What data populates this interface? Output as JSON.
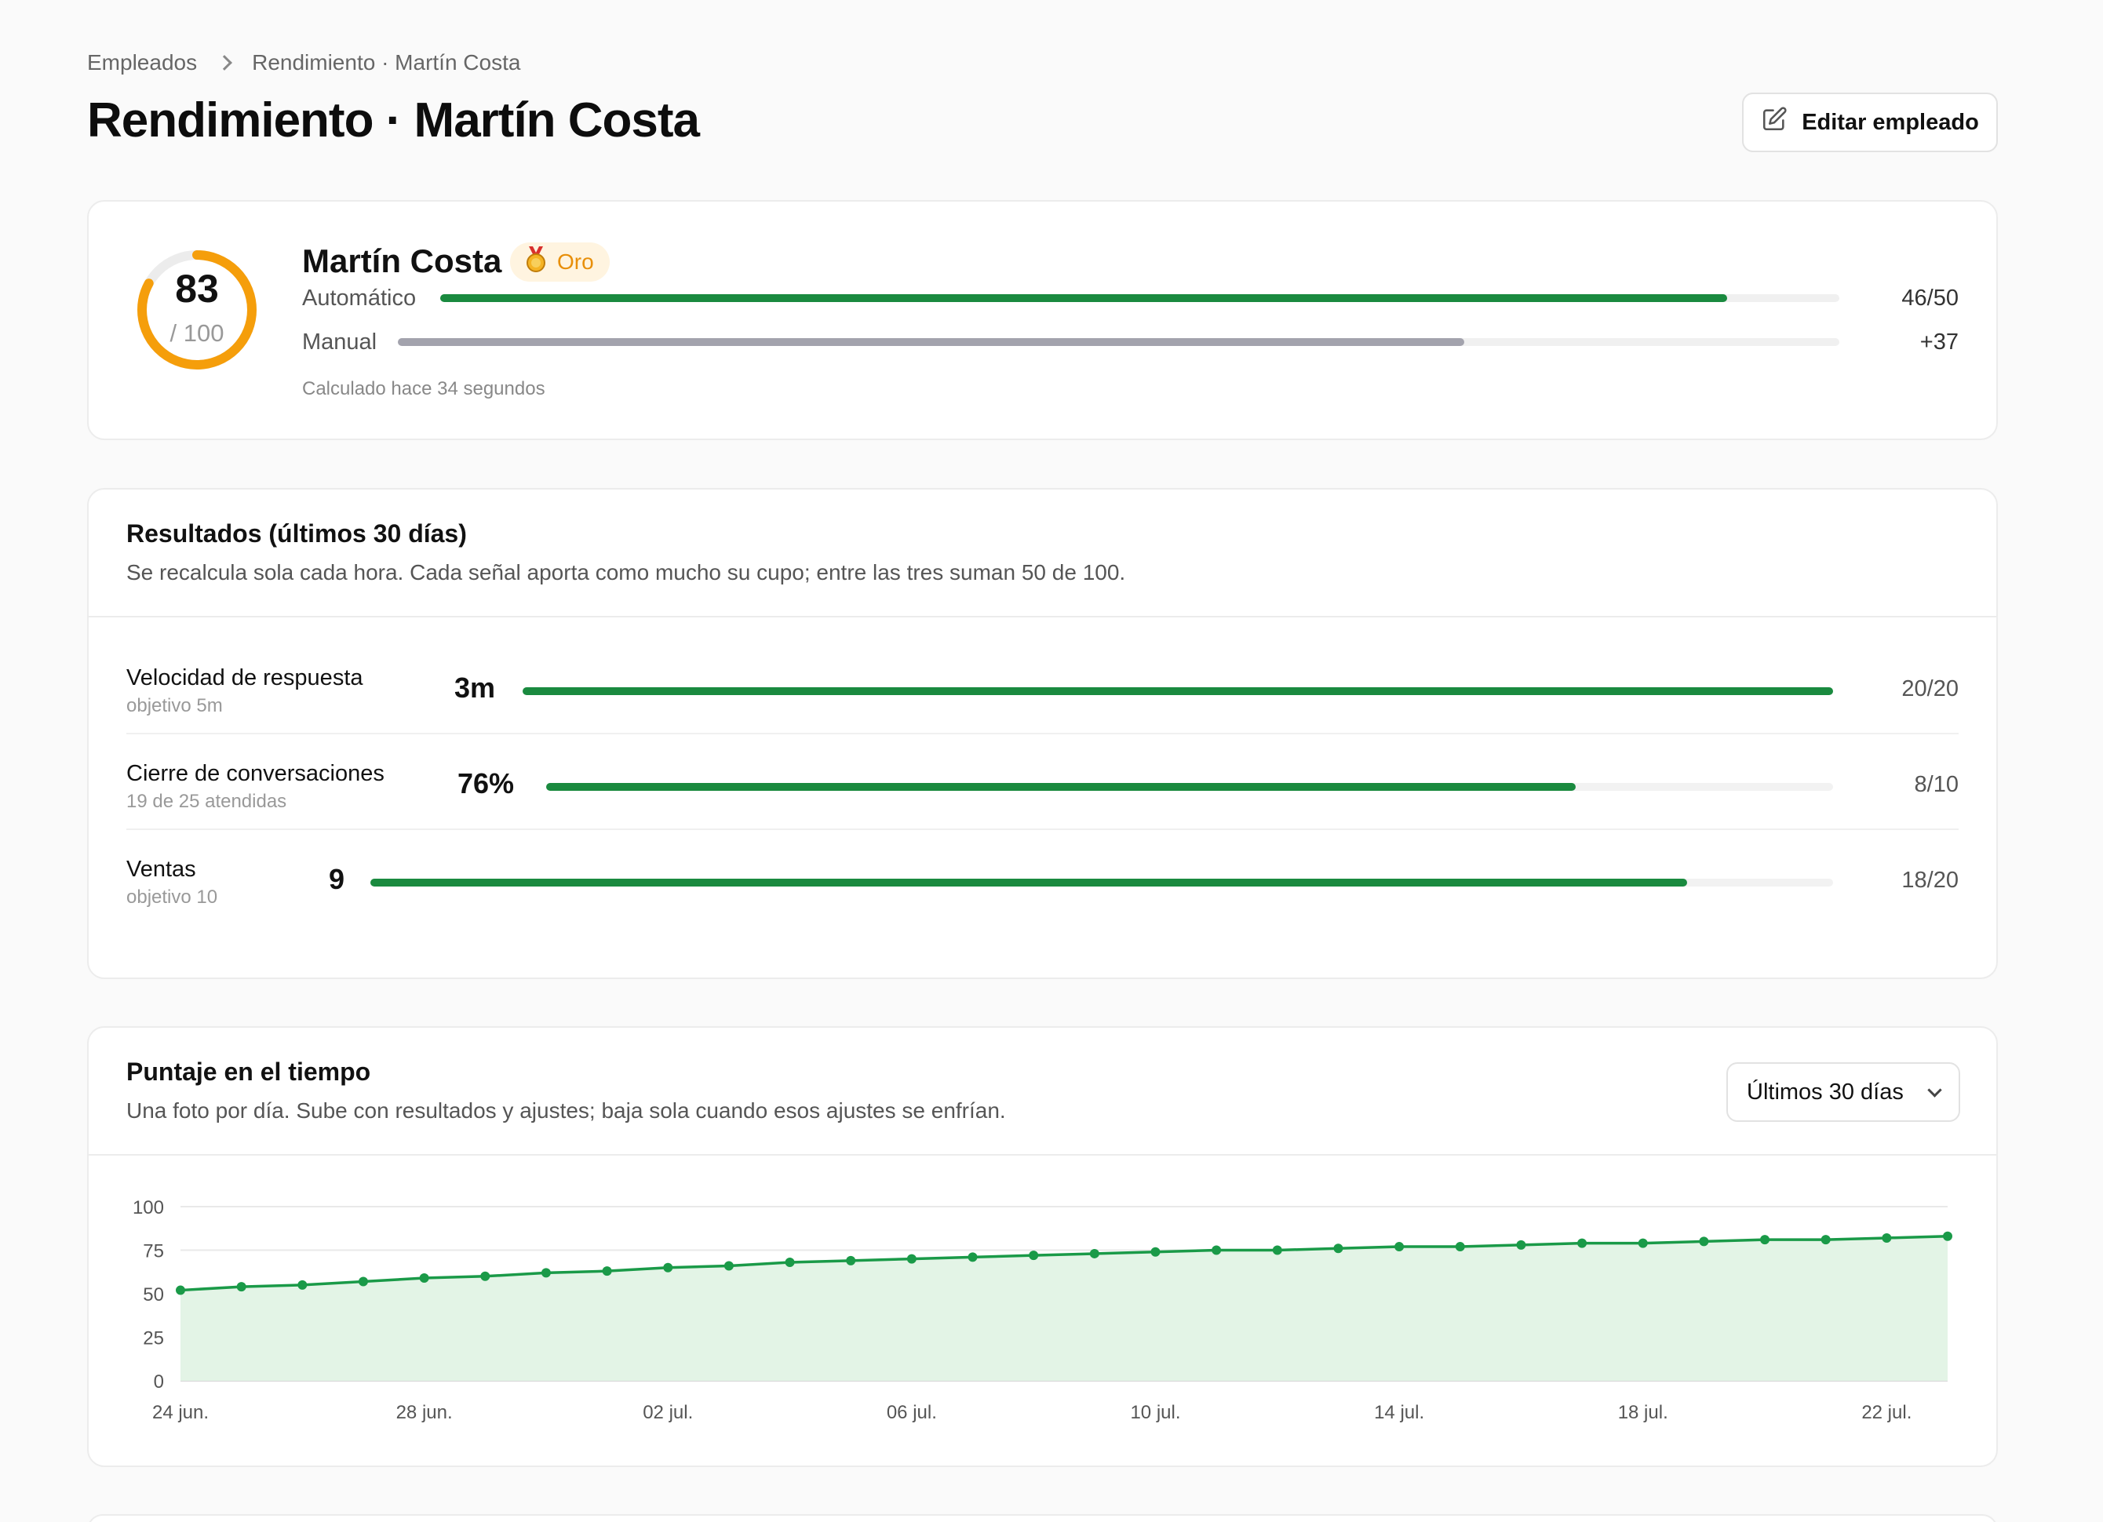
{
  "breadcrumb": {
    "parent": "Empleados",
    "current": "Rendimiento · Martín Costa"
  },
  "page": {
    "title": "Rendimiento · Martín Costa",
    "edit_label": "Editar empleado"
  },
  "score_card": {
    "score": "83",
    "max_label": "/ 100",
    "score_fraction": 0.83,
    "name": "Martín Costa",
    "tier": "Oro",
    "rows": [
      {
        "label": "Automático",
        "value": "46/50",
        "fraction": 0.92,
        "color": "#1a8a3f"
      },
      {
        "label": "Manual",
        "value": "+37",
        "fraction": 0.74,
        "color": "#a3a3ad"
      }
    ],
    "calc_note": "Calculado hace 34 segundos",
    "ring_color": "#f59e0b"
  },
  "results": {
    "title": "Resultados (últimos 30 días)",
    "subtitle": "Se recalcula sola cada hora. Cada señal aporta como mucho su cupo; entre las tres suman 50 de 100.",
    "metrics": [
      {
        "name": "Velocidad de respuesta",
        "hint": "objetivo 5m",
        "value": "3m",
        "points": "20/20",
        "fraction": 1.0
      },
      {
        "name": "Cierre de conversaciones",
        "hint": "19 de 25 atendidas",
        "value": "76%",
        "points": "8/10",
        "fraction": 0.8
      },
      {
        "name": "Ventas",
        "hint": "objetivo 10",
        "value": "9",
        "points": "18/20",
        "fraction": 0.9
      }
    ]
  },
  "trend": {
    "title": "Puntaje en el tiempo",
    "subtitle": "Una foto por día. Sube con resultados y ajustes; baja sola cuando esos ajustes se enfrían.",
    "range_label": "Últimos 30 días",
    "chart_data": {
      "type": "area",
      "y_ticks": [
        0,
        25,
        50,
        75,
        100
      ],
      "ylim": [
        0,
        100
      ],
      "x_tick_labels": [
        "24 jun.",
        "28 jun.",
        "02 jul.",
        "06 jul.",
        "10 jul.",
        "14 jul.",
        "18 jul.",
        "22 jul."
      ],
      "x_tick_indices": [
        0,
        4,
        8,
        12,
        16,
        20,
        24,
        28
      ],
      "values": [
        52,
        54,
        55,
        57,
        59,
        60,
        62,
        63,
        65,
        66,
        68,
        69,
        70,
        71,
        72,
        73,
        74,
        75,
        75,
        76,
        77,
        77,
        78,
        79,
        79,
        80,
        81,
        81,
        82,
        83
      ],
      "line_color": "#1a9a48",
      "fill_color": "#e3f4e6",
      "grid": true
    }
  }
}
